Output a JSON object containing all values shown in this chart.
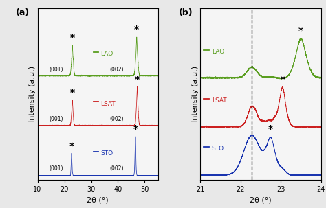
{
  "colors": {
    "LAO": "#5a9e20",
    "LSAT": "#cc2020",
    "STO": "#1a35b0"
  },
  "panel_a": {
    "xlim": [
      10,
      55
    ],
    "xticks": [
      10,
      20,
      30,
      40,
      50
    ],
    "xlabel": "2θ (°)",
    "ylabel": "Intensity (a.u.)",
    "label": "(a)",
    "offsets": {
      "LAO": 1.9,
      "LSAT": 0.95,
      "STO": 0.0
    },
    "scale": 0.75
  },
  "panel_b": {
    "xlim": [
      21,
      24
    ],
    "xticks": [
      21,
      22,
      23,
      24
    ],
    "xlabel": "2θ (°)",
    "ylabel": "Intensity (a.u.)",
    "label": "(b)",
    "dashed_line_x": 22.28,
    "offsets": {
      "LAO": 1.85,
      "LSAT": 0.92,
      "STO": 0.0
    },
    "scale": 0.78
  },
  "fig_bgcolor": "#e8e8e8",
  "ax_bgcolor": "#f5f5f5",
  "noise_seed": 42
}
